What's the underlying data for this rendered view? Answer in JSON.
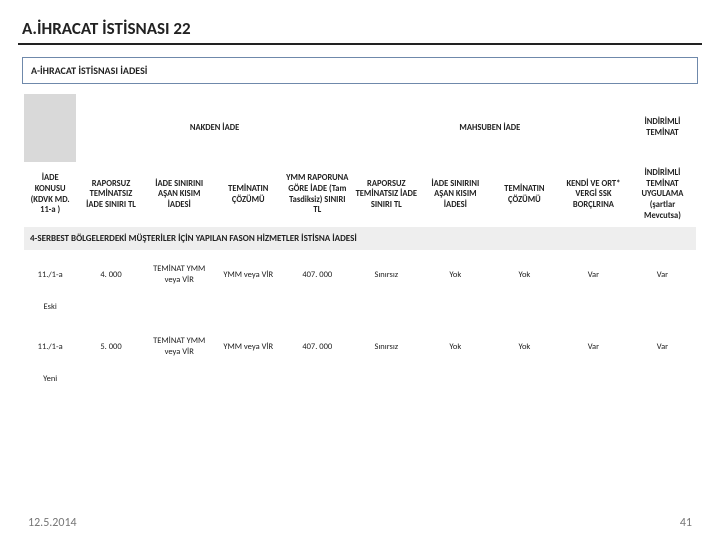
{
  "title": "A.İHRACAT İSTİSNASI 22",
  "box_header": "A-İHRACAT İSTİSNASI İADESİ",
  "group_headers": {
    "nakden": "NAKDEN İADE",
    "mahsuben": "MAHSUBEN İADE",
    "indirimli": "İNDİRİMLİ TEMİNAT"
  },
  "col_headers": {
    "c1": "İADE KONUSU (KDVK MD. 11-a )",
    "c2": "RAPORSUZ TEMİNATSIZ İADE SINIRI TL",
    "c3": "İADE SINIRINI AŞAN KISIM İADESİ",
    "c4": "TEMİNATIN ÇÖZÜMÜ",
    "c5": "YMM RAPORUNA GÖRE İADE (Tam Tasdiksiz) SINIRI TL",
    "c6": "RAPORSUZ TEMİNATSIZ İADE SINIRI TL",
    "c7": "İADE SINIRINI AŞAN KISIM İADESİ",
    "c8": "TEMİNATIN ÇÖZÜMÜ",
    "c9": "KENDİ VE ORT* VERGİ SSK BORÇLRINA",
    "c10": "İNDİRİMLİ TEMİNAT UYGULAMA (şartlar Mevcutsa)"
  },
  "section_title": "4-SERBEST BÖLGELERDEKİ MÜŞTERİLER İÇİN YAPILAN FASON HİZMETLER İSTİSNA İADESİ",
  "rows": [
    {
      "key": "11./1-a",
      "keysub": "Eski",
      "c2": "4. 000",
      "c3": "TEMİNAT YMM veya VİR",
      "c4": "YMM veya VİR",
      "c5": "407. 000",
      "c6": "Sınırsız",
      "c7": "Yok",
      "c8": "Yok",
      "c9": "Var",
      "c10": "Var"
    },
    {
      "key": "11./1-a",
      "keysub": "Yeni",
      "c2": "5. 000",
      "c3": "TEMİNAT YMM veya VİR",
      "c4": "YMM veya VİR",
      "c5": "407. 000",
      "c6": "Sınırsız",
      "c7": "Yok",
      "c8": "Yok",
      "c9": "Var",
      "c10": "Var"
    }
  ],
  "footer_date": "12.5.2014",
  "page_number": "41"
}
